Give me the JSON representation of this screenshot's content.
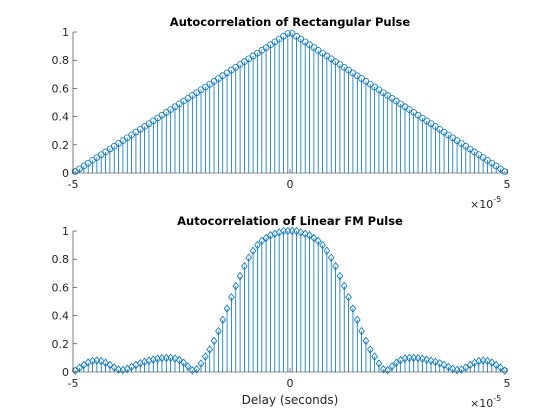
{
  "colors": {
    "series": "#0072BD",
    "axis": "#262626"
  },
  "chart_data": [
    {
      "type": "stem",
      "title": "Autocorrelation of Rectangular Pulse",
      "xlabel": "",
      "ylabel": "",
      "xlim": [
        -5e-05,
        5e-05
      ],
      "ylim": [
        0,
        1
      ],
      "x_exponent_label": "×10",
      "x_exponent_power": "-5",
      "xticks": [
        {
          "value": -5e-05,
          "label": "-5"
        },
        {
          "value": 0,
          "label": "0"
        },
        {
          "value": 5e-05,
          "label": "5"
        }
      ],
      "yticks": [
        {
          "value": 0,
          "label": "0"
        },
        {
          "value": 0.2,
          "label": "0.2"
        },
        {
          "value": 0.4,
          "label": "0.4"
        },
        {
          "value": 0.6,
          "label": "0.6"
        },
        {
          "value": 0.8,
          "label": "0.8"
        },
        {
          "value": 1,
          "label": "1"
        }
      ],
      "marker": "circle",
      "series": [
        {
          "x": [
            -4.95e-05,
            -4.85e-05,
            -4.75e-05,
            -4.65e-05,
            -4.55e-05,
            -4.45e-05,
            -4.35e-05,
            -4.25e-05,
            -4.15e-05,
            -4.05e-05,
            -3.95e-05,
            -3.85e-05,
            -3.75e-05,
            -3.65e-05,
            -3.55e-05,
            -3.45e-05,
            -3.35e-05,
            -3.25e-05,
            -3.15e-05,
            -3.05e-05,
            -2.95e-05,
            -2.85e-05,
            -2.75e-05,
            -2.65e-05,
            -2.55e-05,
            -2.45e-05,
            -2.35e-05,
            -2.25e-05,
            -2.15e-05,
            -2.05e-05,
            -1.95e-05,
            -1.85e-05,
            -1.75e-05,
            -1.65e-05,
            -1.55e-05,
            -1.45e-05,
            -1.35e-05,
            -1.25e-05,
            -1.15e-05,
            -1.05e-05,
            -9.5e-06,
            -8.5e-06,
            -7.5e-06,
            -6.5e-06,
            -5.5e-06,
            -4.5e-06,
            -3.5e-06,
            -2.5e-06,
            -1.5e-06,
            -5e-07,
            5e-07,
            1.5e-06,
            2.5e-06,
            3.5e-06,
            4.5e-06,
            5.5e-06,
            6.5e-06,
            7.5e-06,
            8.5e-06,
            9.5e-06,
            1.05e-05,
            1.15e-05,
            1.25e-05,
            1.35e-05,
            1.45e-05,
            1.55e-05,
            1.65e-05,
            1.75e-05,
            1.85e-05,
            1.95e-05,
            2.05e-05,
            2.15e-05,
            2.25e-05,
            2.35e-05,
            2.45e-05,
            2.55e-05,
            2.65e-05,
            2.75e-05,
            2.85e-05,
            2.95e-05,
            3.05e-05,
            3.15e-05,
            3.25e-05,
            3.35e-05,
            3.45e-05,
            3.55e-05,
            3.65e-05,
            3.75e-05,
            3.85e-05,
            3.95e-05,
            4.05e-05,
            4.15e-05,
            4.25e-05,
            4.35e-05,
            4.45e-05,
            4.55e-05,
            4.65e-05,
            4.75e-05,
            4.85e-05,
            4.95e-05
          ],
          "y": [
            0.01,
            0.03,
            0.05,
            0.07,
            0.09,
            0.11,
            0.13,
            0.15,
            0.17,
            0.19,
            0.21,
            0.23,
            0.25,
            0.27,
            0.29,
            0.31,
            0.33,
            0.35,
            0.37,
            0.39,
            0.41,
            0.43,
            0.45,
            0.47,
            0.49,
            0.51,
            0.53,
            0.55,
            0.57,
            0.59,
            0.61,
            0.63,
            0.65,
            0.67,
            0.69,
            0.71,
            0.73,
            0.75,
            0.77,
            0.79,
            0.81,
            0.83,
            0.85,
            0.87,
            0.89,
            0.91,
            0.93,
            0.95,
            0.97,
            0.99,
            0.99,
            0.97,
            0.95,
            0.93,
            0.91,
            0.89,
            0.87,
            0.85,
            0.83,
            0.81,
            0.79,
            0.77,
            0.75,
            0.73,
            0.71,
            0.69,
            0.67,
            0.65,
            0.63,
            0.61,
            0.59,
            0.57,
            0.55,
            0.53,
            0.51,
            0.49,
            0.47,
            0.45,
            0.43,
            0.41,
            0.39,
            0.37,
            0.35,
            0.33,
            0.31,
            0.29,
            0.27,
            0.25,
            0.23,
            0.21,
            0.19,
            0.17,
            0.15,
            0.13,
            0.11,
            0.09,
            0.07,
            0.05,
            0.03,
            0.01
          ]
        }
      ]
    },
    {
      "type": "stem",
      "title": "Autocorrelation of Linear FM Pulse",
      "xlabel": "Delay (seconds)",
      "ylabel": "",
      "xlim": [
        -5e-05,
        5e-05
      ],
      "ylim": [
        0,
        1
      ],
      "x_exponent_label": "×10",
      "x_exponent_power": "-5",
      "xticks": [
        {
          "value": -5e-05,
          "label": "-5"
        },
        {
          "value": 0,
          "label": "0"
        },
        {
          "value": 5e-05,
          "label": "5"
        }
      ],
      "yticks": [
        {
          "value": 0,
          "label": "0"
        },
        {
          "value": 0.2,
          "label": "0.2"
        },
        {
          "value": 0.4,
          "label": "0.4"
        },
        {
          "value": 0.6,
          "label": "0.6"
        },
        {
          "value": 0.8,
          "label": "0.8"
        },
        {
          "value": 1,
          "label": "1"
        }
      ],
      "marker": "diamond",
      "series": [
        {
          "x": [
            -4.95e-05,
            -4.85e-05,
            -4.75e-05,
            -4.65e-05,
            -4.55e-05,
            -4.45e-05,
            -4.35e-05,
            -4.25e-05,
            -4.15e-05,
            -4.05e-05,
            -3.95e-05,
            -3.85e-05,
            -3.75e-05,
            -3.65e-05,
            -3.55e-05,
            -3.45e-05,
            -3.35e-05,
            -3.25e-05,
            -3.15e-05,
            -3.05e-05,
            -2.95e-05,
            -2.85e-05,
            -2.75e-05,
            -2.65e-05,
            -2.55e-05,
            -2.45e-05,
            -2.35e-05,
            -2.25e-05,
            -2.15e-05,
            -2.05e-05,
            -1.95e-05,
            -1.85e-05,
            -1.75e-05,
            -1.65e-05,
            -1.55e-05,
            -1.45e-05,
            -1.35e-05,
            -1.25e-05,
            -1.15e-05,
            -1.05e-05,
            -9.5e-06,
            -8.5e-06,
            -7.5e-06,
            -6.5e-06,
            -5.5e-06,
            -4.5e-06,
            -3.5e-06,
            -2.5e-06,
            -1.5e-06,
            -5e-07,
            5e-07,
            1.5e-06,
            2.5e-06,
            3.5e-06,
            4.5e-06,
            5.5e-06,
            6.5e-06,
            7.5e-06,
            8.5e-06,
            9.5e-06,
            1.05e-05,
            1.15e-05,
            1.25e-05,
            1.35e-05,
            1.45e-05,
            1.55e-05,
            1.65e-05,
            1.75e-05,
            1.85e-05,
            1.95e-05,
            2.05e-05,
            2.15e-05,
            2.25e-05,
            2.35e-05,
            2.45e-05,
            2.55e-05,
            2.65e-05,
            2.75e-05,
            2.85e-05,
            2.95e-05,
            3.05e-05,
            3.15e-05,
            3.25e-05,
            3.35e-05,
            3.45e-05,
            3.55e-05,
            3.65e-05,
            3.75e-05,
            3.85e-05,
            3.95e-05,
            4.05e-05,
            4.15e-05,
            4.25e-05,
            4.35e-05,
            4.45e-05,
            4.55e-05,
            4.65e-05,
            4.75e-05,
            4.85e-05,
            4.95e-05
          ],
          "y": [
            0.01,
            0.03,
            0.05,
            0.067,
            0.078,
            0.081,
            0.077,
            0.066,
            0.05,
            0.032,
            0.018,
            0.014,
            0.022,
            0.036,
            0.05,
            0.062,
            0.072,
            0.08,
            0.088,
            0.094,
            0.098,
            0.1,
            0.1,
            0.096,
            0.085,
            0.066,
            0.04,
            0.012,
            0.02,
            0.06,
            0.11,
            0.16,
            0.22,
            0.29,
            0.37,
            0.45,
            0.53,
            0.61,
            0.68,
            0.75,
            0.81,
            0.86,
            0.9,
            0.93,
            0.95,
            0.97,
            0.98,
            0.99,
            1.0,
            1.0,
            1.0,
            1.0,
            0.99,
            0.98,
            0.97,
            0.95,
            0.93,
            0.9,
            0.86,
            0.81,
            0.75,
            0.68,
            0.61,
            0.53,
            0.45,
            0.37,
            0.29,
            0.22,
            0.16,
            0.11,
            0.06,
            0.02,
            0.012,
            0.04,
            0.066,
            0.085,
            0.096,
            0.1,
            0.1,
            0.098,
            0.094,
            0.088,
            0.08,
            0.072,
            0.062,
            0.05,
            0.036,
            0.022,
            0.014,
            0.018,
            0.032,
            0.05,
            0.066,
            0.077,
            0.081,
            0.078,
            0.067,
            0.05,
            0.03,
            0.01
          ]
        }
      ]
    }
  ]
}
